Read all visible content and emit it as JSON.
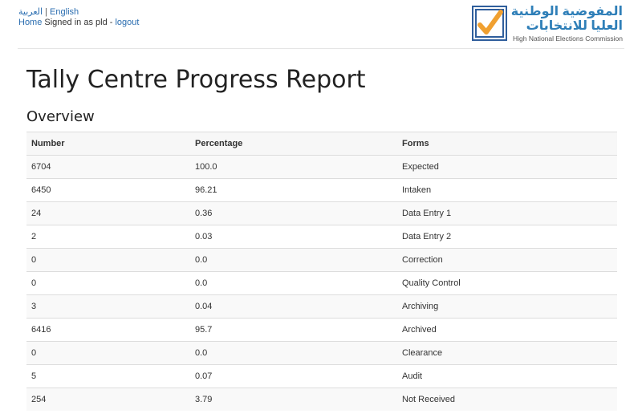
{
  "header": {
    "lang_arabic": "العربية",
    "lang_sep": "|",
    "lang_english": "English",
    "home_link": "Home",
    "signed_in_text": "Signed in as pld -",
    "logout_link": "logout",
    "logo": {
      "arabic_line1": "المفوضية الوطنية",
      "arabic_line2": "العليا للانتخابات",
      "english": "High National Elections Commission"
    }
  },
  "page": {
    "title": "Tally Centre Progress Report",
    "section_title": "Overview"
  },
  "table": {
    "headers": [
      "Number",
      "Percentage",
      "Forms"
    ],
    "rows": [
      [
        "6704",
        "100.0",
        "Expected"
      ],
      [
        "6450",
        "96.21",
        "Intaken"
      ],
      [
        "24",
        "0.36",
        "Data Entry 1"
      ],
      [
        "2",
        "0.03",
        "Data Entry 2"
      ],
      [
        "0",
        "0.0",
        "Correction"
      ],
      [
        "0",
        "0.0",
        "Quality Control"
      ],
      [
        "3",
        "0.04",
        "Archiving"
      ],
      [
        "6416",
        "95.7",
        "Archived"
      ],
      [
        "0",
        "0.0",
        "Clearance"
      ],
      [
        "5",
        "0.07",
        "Audit"
      ],
      [
        "254",
        "3.79",
        "Not Received"
      ]
    ]
  },
  "colors": {
    "link": "#2a6db0",
    "logo_blue": "#2f7fb8",
    "logo_check": "#f0a030"
  }
}
